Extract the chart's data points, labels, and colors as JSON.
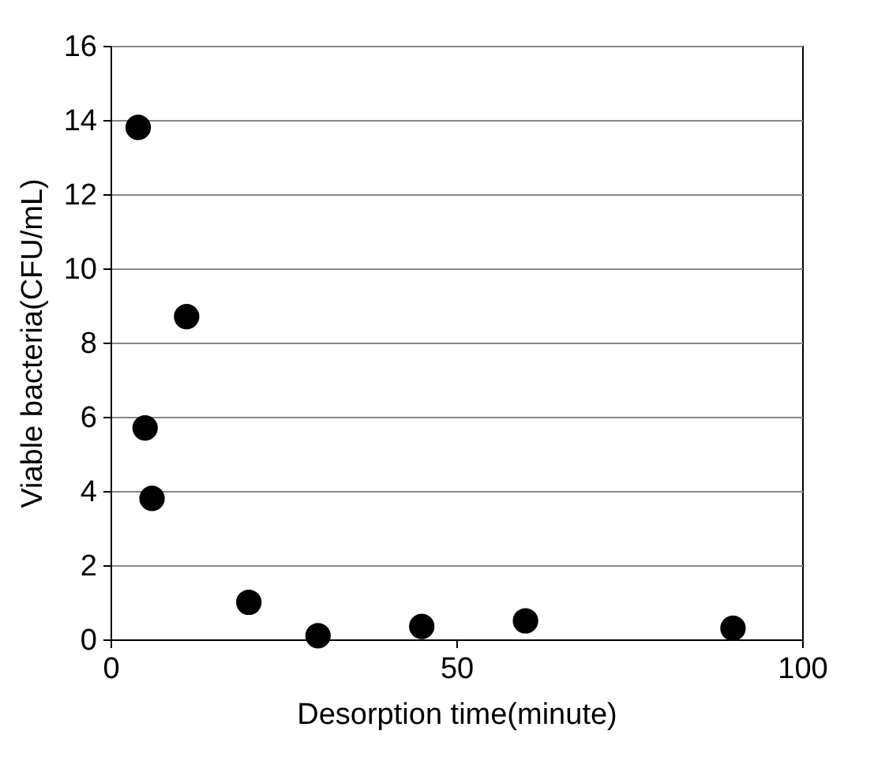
{
  "chart_data": {
    "type": "scatter",
    "xlabel": "Desorption time(minute)",
    "ylabel": "Viable bacteria(CFU/mL)",
    "x": [
      4,
      5,
      6,
      11,
      20,
      30,
      45,
      60,
      90
    ],
    "series": [
      {
        "color": "#000000",
        "values": [
          13.8,
          5.7,
          3.8,
          8.7,
          1.0,
          0.1,
          0.35,
          0.5,
          0.3
        ]
      }
    ],
    "xlim": [
      0,
      100
    ],
    "xticks": [
      0,
      50,
      100
    ],
    "ylim": [
      0,
      16
    ],
    "yticks": [
      0,
      2,
      4,
      6,
      8,
      10,
      12,
      14,
      16
    ],
    "grid": "y",
    "marker": "circle",
    "legend": false
  }
}
